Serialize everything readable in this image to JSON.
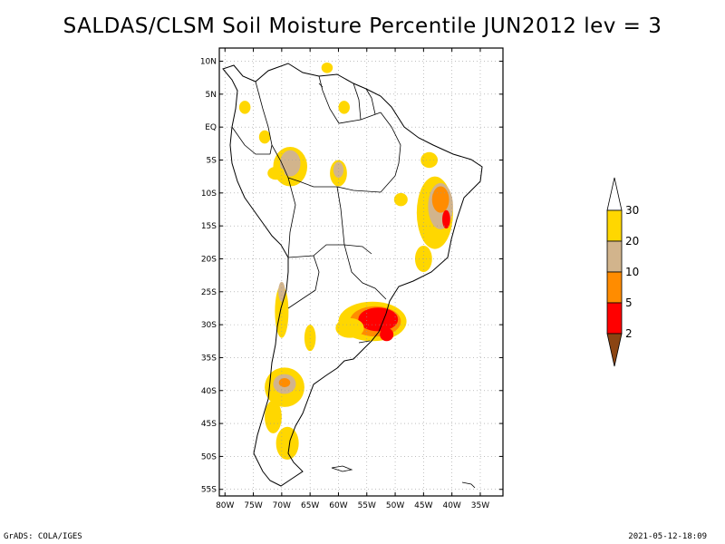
{
  "title": "SALDAS/CLSM Soil Moisture Percentile JUN2012 lev = 3",
  "footer": {
    "left": "GrADS: COLA/IGES",
    "right": "2021-05-12-18:09"
  },
  "map": {
    "lon_range": [
      -81,
      -31
    ],
    "lat_range": [
      -56,
      12
    ],
    "lon_ticks": [
      {
        "v": -80,
        "label": "80W"
      },
      {
        "v": -75,
        "label": "75W"
      },
      {
        "v": -70,
        "label": "70W"
      },
      {
        "v": -65,
        "label": "65W"
      },
      {
        "v": -60,
        "label": "60W"
      },
      {
        "v": -55,
        "label": "55W"
      },
      {
        "v": -50,
        "label": "50W"
      },
      {
        "v": -45,
        "label": "45W"
      },
      {
        "v": -40,
        "label": "40W"
      },
      {
        "v": -35,
        "label": "35W"
      }
    ],
    "lat_ticks": [
      {
        "v": 10,
        "label": "10N"
      },
      {
        "v": 5,
        "label": "5N"
      },
      {
        "v": 0,
        "label": "EQ"
      },
      {
        "v": -5,
        "label": "5S"
      },
      {
        "v": -10,
        "label": "10S"
      },
      {
        "v": -15,
        "label": "15S"
      },
      {
        "v": -20,
        "label": "20S"
      },
      {
        "v": -25,
        "label": "25S"
      },
      {
        "v": -30,
        "label": "30S"
      },
      {
        "v": -35,
        "label": "35S"
      },
      {
        "v": -40,
        "label": "40S"
      },
      {
        "v": -45,
        "label": "45S"
      },
      {
        "v": -50,
        "label": "50S"
      },
      {
        "v": -55,
        "label": "55S"
      }
    ],
    "colors": {
      "lt2": "#8b4513",
      "c2_5": "#ff0000",
      "c5_10": "#ff8c00",
      "c10_20": "#d2b48c",
      "c20_30": "#ffd700",
      "gt30": "#ffffff"
    },
    "regions": [
      {
        "cls": "c20_30",
        "lon": -43,
        "lat": -13,
        "rx": 3.2,
        "ry": 5.5
      },
      {
        "cls": "c10_20",
        "lon": -42,
        "lat": -12,
        "rx": 2.2,
        "ry": 3.5
      },
      {
        "cls": "c5_10",
        "lon": -42,
        "lat": -11,
        "rx": 1.5,
        "ry": 2.0
      },
      {
        "cls": "c2_5",
        "lon": -41,
        "lat": -14,
        "rx": 0.7,
        "ry": 1.4
      },
      {
        "cls": "c20_30",
        "lon": -54,
        "lat": -29.5,
        "rx": 6,
        "ry": 3
      },
      {
        "cls": "c5_10",
        "lon": -53.5,
        "lat": -29.5,
        "rx": 4.5,
        "ry": 2.3
      },
      {
        "cls": "c2_5",
        "lon": -53,
        "lat": -29.2,
        "rx": 3.5,
        "ry": 1.8
      },
      {
        "cls": "c20_30",
        "lon": -58,
        "lat": -30.5,
        "rx": 2.5,
        "ry": 1.5
      },
      {
        "cls": "c20_30",
        "lon": -69.5,
        "lat": -39.5,
        "rx": 3.5,
        "ry": 3
      },
      {
        "cls": "c10_20",
        "lon": -69.5,
        "lat": -39,
        "rx": 2,
        "ry": 1.5
      },
      {
        "cls": "c5_10",
        "lon": -69.5,
        "lat": -38.8,
        "rx": 1,
        "ry": 0.7
      },
      {
        "cls": "c20_30",
        "lon": -69,
        "lat": -48,
        "rx": 2,
        "ry": 2.5
      },
      {
        "cls": "c20_30",
        "lon": -68.5,
        "lat": -6,
        "rx": 3,
        "ry": 3
      },
      {
        "cls": "c10_20",
        "lon": -68.5,
        "lat": -5.5,
        "rx": 1.8,
        "ry": 2
      },
      {
        "cls": "c20_30",
        "lon": -60,
        "lat": -7,
        "rx": 1.5,
        "ry": 2
      },
      {
        "cls": "c10_20",
        "lon": -60,
        "lat": -6.5,
        "rx": 0.9,
        "ry": 1.2
      },
      {
        "cls": "c20_30",
        "lon": -71,
        "lat": -7,
        "rx": 1.5,
        "ry": 1
      },
      {
        "cls": "c20_30",
        "lon": -73,
        "lat": -1.5,
        "rx": 1,
        "ry": 1
      },
      {
        "cls": "c20_30",
        "lon": -70,
        "lat": -28,
        "rx": 1.2,
        "ry": 4
      },
      {
        "cls": "c10_20",
        "lon": -70,
        "lat": -25,
        "rx": 0.6,
        "ry": 1.5
      },
      {
        "cls": "c20_30",
        "lon": -71.5,
        "lat": -44,
        "rx": 1.5,
        "ry": 2.5
      },
      {
        "cls": "c20_30",
        "lon": -45,
        "lat": -20,
        "rx": 1.5,
        "ry": 2
      },
      {
        "cls": "c20_30",
        "lon": -44,
        "lat": -5,
        "rx": 1.5,
        "ry": 1.2
      },
      {
        "cls": "c20_30",
        "lon": -62,
        "lat": 9,
        "rx": 1,
        "ry": 0.8
      },
      {
        "cls": "c20_30",
        "lon": -59,
        "lat": 3,
        "rx": 1,
        "ry": 1
      },
      {
        "cls": "c20_30",
        "lon": -76.5,
        "lat": 3,
        "rx": 1,
        "ry": 1
      },
      {
        "cls": "c20_30",
        "lon": -65,
        "lat": -32,
        "rx": 1,
        "ry": 2
      },
      {
        "cls": "c20_30",
        "lon": -49,
        "lat": -11,
        "rx": 1.2,
        "ry": 1
      },
      {
        "cls": "c2_5",
        "lon": -51.5,
        "lat": -31.5,
        "rx": 1.2,
        "ry": 1
      }
    ]
  },
  "colorbar": {
    "levels": [
      {
        "label": "30",
        "color": "#ffd700"
      },
      {
        "label": "20",
        "color": "#d2b48c"
      },
      {
        "label": "10",
        "color": "#ff8c00"
      },
      {
        "label": "5",
        "color": "#ff0000"
      },
      {
        "label": "2",
        "color": "#8b4513"
      }
    ],
    "top_arrow_color": "#ffffff",
    "bottom_arrow_color": "#8b4513"
  }
}
